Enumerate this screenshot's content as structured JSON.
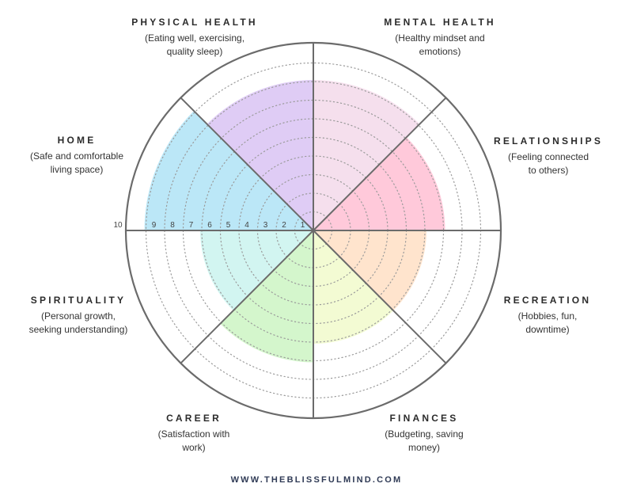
{
  "categories": [
    {
      "title": "MENTAL HEALTH",
      "description": "(Healthy mindset and\nemotions)",
      "score": 8,
      "color": "#f4dbeb"
    },
    {
      "title": "RELATIONSHIPS",
      "description": "(Feeling connected\nto others)",
      "score": 7,
      "color": "#ffc3d6"
    },
    {
      "title": "RECREATION",
      "description": "(Hobbies, fun,\ndowntime)",
      "score": 6,
      "color": "#ffe1c8"
    },
    {
      "title": "FINANCES",
      "description": "(Budgeting, saving\nmoney)",
      "score": 6,
      "color": "#f2fbce"
    },
    {
      "title": "CAREER",
      "description": "(Satisfaction with\nwork)",
      "score": 7,
      "color": "#cff5c6"
    },
    {
      "title": "SPIRITUALITY",
      "description": "(Personal growth,\nseeking understanding)",
      "score": 6,
      "color": "#cdf4ef"
    },
    {
      "title": "HOME",
      "description": "(Safe and comfortable\nliving space)",
      "score": 9,
      "color": "#b4e4f6"
    },
    {
      "title": "PHYSICAL HEALTH",
      "description": "(Eating well, exercising,\nquality sleep)",
      "score": 8,
      "color": "#dcc6f4"
    }
  ],
  "scale": {
    "min": 1,
    "max": 10,
    "labels": [
      "1",
      "2",
      "3",
      "4",
      "5",
      "6",
      "7",
      "8",
      "9",
      "10"
    ]
  },
  "website": "WWW.THEBLISSFULMIND.COM",
  "colors": {
    "outline": "#6b6b6b",
    "dots": "#9a9a9a"
  }
}
